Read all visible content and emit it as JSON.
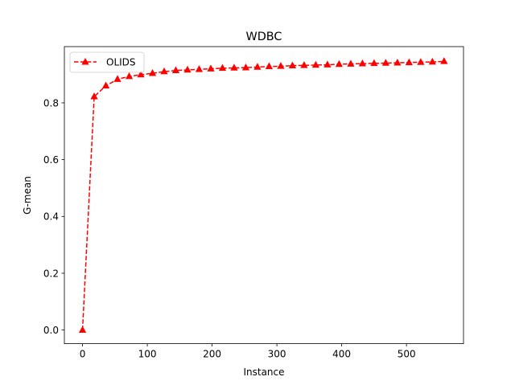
{
  "chart_data": {
    "type": "line",
    "title": "WDBC",
    "xlabel": "Instance",
    "ylabel": "G-mean",
    "xlim": [
      -28,
      588
    ],
    "ylim": [
      -0.048,
      0.998
    ],
    "xticks": [
      0,
      100,
      200,
      300,
      400,
      500
    ],
    "xtick_labels": [
      "0",
      "100",
      "200",
      "300",
      "400",
      "500"
    ],
    "yticks": [
      0.0,
      0.2,
      0.4,
      0.6,
      0.8
    ],
    "ytick_labels": [
      "0.0",
      "0.2",
      "0.4",
      "0.6",
      "0.8"
    ],
    "grid": false,
    "legend_position": "top-left",
    "series": [
      {
        "name": "OLIDS",
        "color": "#ff0000",
        "line_style": "dashed",
        "marker": "triangle-up",
        "x": [
          0,
          18,
          36,
          54,
          72,
          90,
          108,
          126,
          144,
          162,
          180,
          198,
          216,
          234,
          252,
          270,
          288,
          306,
          324,
          342,
          360,
          378,
          396,
          414,
          432,
          450,
          468,
          486,
          504,
          522,
          540,
          558
        ],
        "y": [
          0.0,
          0.822,
          0.86,
          0.883,
          0.893,
          0.899,
          0.904,
          0.91,
          0.914,
          0.916,
          0.918,
          0.92,
          0.922,
          0.923,
          0.924,
          0.926,
          0.928,
          0.929,
          0.931,
          0.932,
          0.933,
          0.934,
          0.936,
          0.937,
          0.938,
          0.939,
          0.94,
          0.941,
          0.942,
          0.943,
          0.944,
          0.946
        ]
      }
    ]
  }
}
